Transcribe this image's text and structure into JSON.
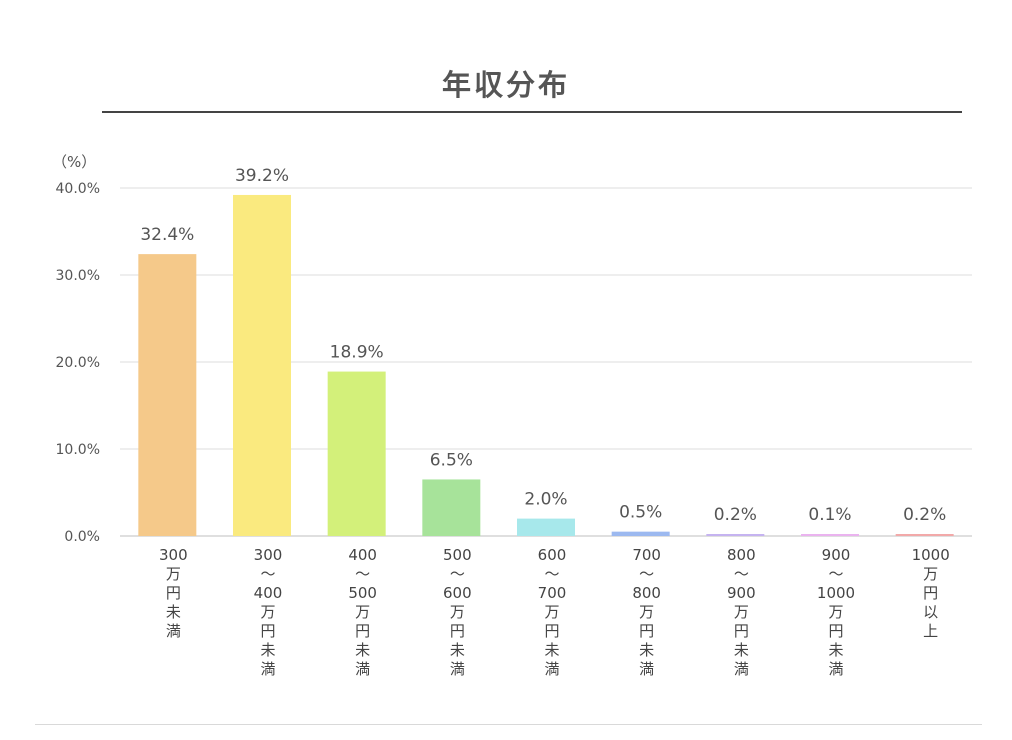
{
  "chart_data": {
    "type": "bar",
    "title": "年収分布",
    "unit_label": "（%）",
    "ylim": [
      0,
      40
    ],
    "yticks": [
      "0.0%",
      "10.0%",
      "20.0%",
      "30.0%",
      "40.0%"
    ],
    "grid": true,
    "categories": [
      [
        "300",
        "万",
        "円",
        "未",
        "満"
      ],
      [
        "300",
        "〜",
        "400",
        "万",
        "円",
        "未",
        "満"
      ],
      [
        "400",
        "〜",
        "500",
        "万",
        "円",
        "未",
        "満"
      ],
      [
        "500",
        "〜",
        "600",
        "万",
        "円",
        "未",
        "満"
      ],
      [
        "600",
        "〜",
        "700",
        "万",
        "円",
        "未",
        "満"
      ],
      [
        "700",
        "〜",
        "800",
        "万",
        "円",
        "未",
        "満"
      ],
      [
        "800",
        "〜",
        "900",
        "万",
        "円",
        "未",
        "満"
      ],
      [
        "900",
        "〜",
        "1000",
        "万",
        "円",
        "未",
        "満"
      ],
      [
        "1000",
        "万",
        "円",
        "以",
        "上"
      ]
    ],
    "values": [
      32.4,
      39.2,
      18.9,
      6.5,
      2.0,
      0.5,
      0.2,
      0.1,
      0.2
    ],
    "data_labels": [
      "32.4%",
      "39.2%",
      "18.9%",
      "6.5%",
      "2.0%",
      "0.5%",
      "0.2%",
      "0.1%",
      "0.2%"
    ],
    "colors": [
      "#f5c98a",
      "#faea7f",
      "#d3f07a",
      "#a7e39a",
      "#a7e8eb",
      "#9cb9f0",
      "#c5b3f0",
      "#eab3ef",
      "#f2a9a9"
    ]
  }
}
